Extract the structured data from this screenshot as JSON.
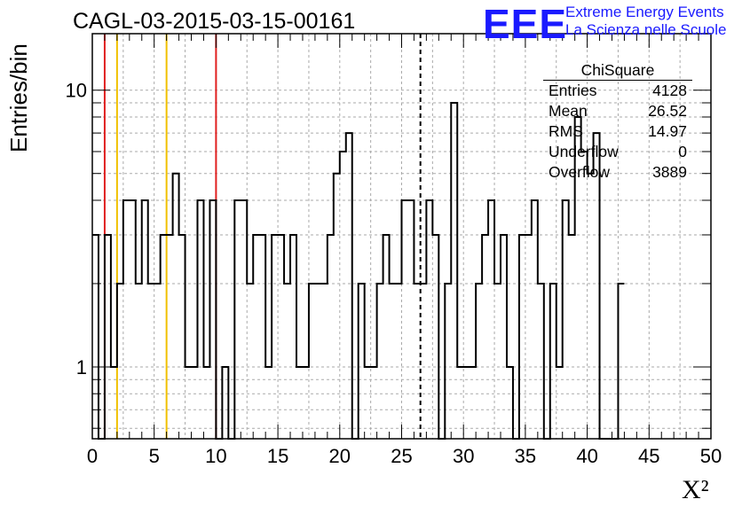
{
  "title": "CAGL-03-2015-03-15-00161",
  "logo": {
    "mark": "EEE",
    "line1": "Extreme Energy Events",
    "line2": "La Scienza nelle Scuole"
  },
  "stats": {
    "title": "ChiSquare",
    "rows": [
      {
        "label": "Entries",
        "value": "4128"
      },
      {
        "label": "Mean",
        "value": "26.52"
      },
      {
        "label": "RMS",
        "value": "14.97"
      },
      {
        "label": "Underflow",
        "value": "0"
      },
      {
        "label": "Overflow",
        "value": "3889"
      }
    ]
  },
  "chart_data": {
    "type": "histogram",
    "title": "CAGL-03-2015-03-15-00161",
    "xlabel": "X²",
    "ylabel": "Entries/bin",
    "xlim": [
      0,
      50
    ],
    "ylim": [
      0.55,
      16
    ],
    "yscale": "log",
    "grid": true,
    "bin_width": 0.5,
    "x_ticks": [
      "0",
      "5",
      "10",
      "15",
      "20",
      "25",
      "30",
      "35",
      "40",
      "45",
      "50"
    ],
    "y_ticks": [
      "1",
      "10"
    ],
    "y_tick_values": [
      1,
      10
    ],
    "counts": [
      3,
      0,
      3,
      1,
      2,
      4,
      4,
      2,
      4,
      2,
      2,
      3,
      3,
      5,
      3,
      1,
      1,
      4,
      1,
      4,
      0,
      1,
      0,
      4,
      4,
      2,
      3,
      3,
      1,
      3,
      3,
      2,
      3,
      1,
      1,
      2,
      2,
      2,
      3,
      5,
      6,
      7,
      0,
      2,
      1,
      1,
      2,
      3,
      2,
      2,
      4,
      4,
      2,
      2,
      4,
      3,
      0,
      2,
      9,
      1,
      1,
      1,
      2,
      3,
      4,
      2,
      3,
      1,
      0,
      3,
      3,
      4,
      2,
      0,
      2,
      1,
      4,
      3,
      8,
      6,
      5,
      7,
      0,
      0,
      0,
      2
    ],
    "markers": [
      {
        "x": 1,
        "color": "#e02020",
        "style": "solid"
      },
      {
        "x": 2,
        "color": "#f0c000",
        "style": "solid"
      },
      {
        "x": 6,
        "color": "#f0c000",
        "style": "solid"
      },
      {
        "x": 10,
        "color": "#e02020",
        "style": "solid"
      },
      {
        "x": 26.52,
        "color": "#000000",
        "style": "dashed"
      }
    ]
  }
}
